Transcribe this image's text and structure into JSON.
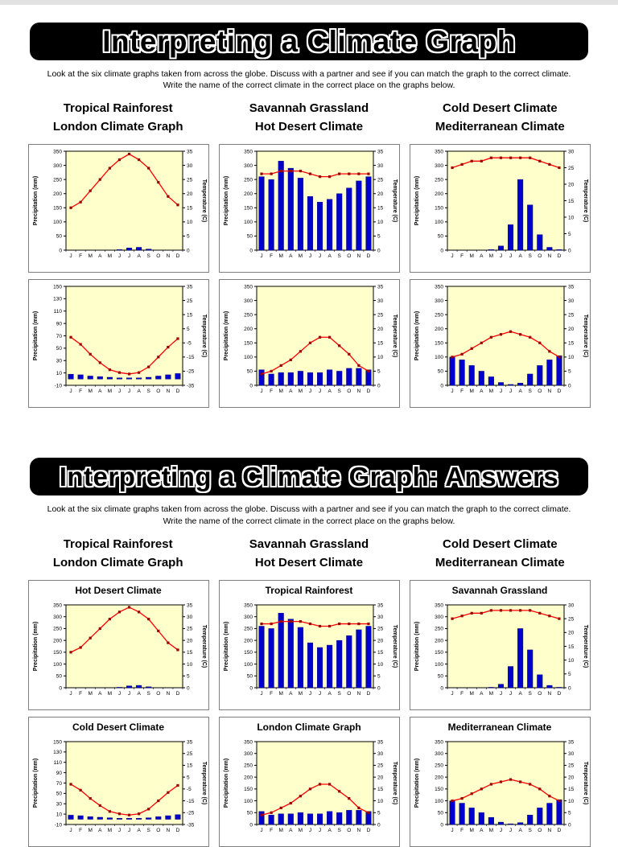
{
  "common": {
    "instructions_line1": "Look at the six climate graphs taken from across the globe.  Discuss with a partner and see if you can match the graph to the correct climate.",
    "instructions_line2": "Write the name of the correct climate in the correct place on the graphs below.",
    "label_columns": [
      {
        "line1": "Tropical Rainforest",
        "line2": "London Climate Graph"
      },
      {
        "line1": "Savannah Grassland",
        "line2": "Hot Desert Climate"
      },
      {
        "line1": "Cold Desert Climate",
        "line2": "Mediterranean Climate"
      }
    ],
    "months": [
      "J",
      "F",
      "M",
      "A",
      "M",
      "J",
      "J",
      "A",
      "S",
      "O",
      "N",
      "D"
    ]
  },
  "sections": [
    {
      "title": "Interpreting a Climate Graph"
    },
    {
      "title": "Interpreting a Climate Graph: Answers"
    }
  ],
  "colors": {
    "bar": "#0000cc",
    "bar_edge": "#000066",
    "line": "#ff0000",
    "marker": "#990000",
    "plot_bg": "#ffffcc",
    "banner_bg": "#000000"
  },
  "chart_data": [
    {
      "type": "bar+line",
      "answer_title": "Hot Desert Climate",
      "left_axis": {
        "label": "Precipitation (mm)",
        "min": 0,
        "max": 350,
        "step": 50
      },
      "right_axis": {
        "label": "Temperature (C)",
        "min": 0,
        "max": 35,
        "step": 5
      },
      "categories": [
        "J",
        "F",
        "M",
        "A",
        "M",
        "J",
        "J",
        "A",
        "S",
        "O",
        "N",
        "D"
      ],
      "precip_mm": [
        0,
        0,
        0,
        0,
        0,
        2,
        8,
        10,
        4,
        0,
        0,
        0
      ],
      "temp_c": [
        15,
        17,
        21,
        25,
        29,
        32,
        34,
        32,
        29,
        24,
        19,
        16
      ]
    },
    {
      "type": "bar+line",
      "answer_title": "Tropical Rainforest",
      "left_axis": {
        "label": "Precipitation (mm)",
        "min": 0,
        "max": 350,
        "step": 50
      },
      "right_axis": {
        "label": "Temperature (C)",
        "min": 0,
        "max": 35,
        "step": 5
      },
      "categories": [
        "J",
        "F",
        "M",
        "A",
        "M",
        "J",
        "J",
        "A",
        "S",
        "O",
        "N",
        "D"
      ],
      "precip_mm": [
        260,
        250,
        315,
        290,
        255,
        190,
        170,
        180,
        200,
        220,
        245,
        260
      ],
      "temp_c": [
        27,
        27,
        28,
        28,
        28,
        27,
        26,
        26,
        27,
        27,
        27,
        27
      ]
    },
    {
      "type": "bar+line",
      "answer_title": "Savannah Grassland",
      "left_axis": {
        "label": "Precipitation (mm)",
        "min": 0,
        "max": 350,
        "step": 50
      },
      "right_axis": {
        "label": "Temperature (C)",
        "min": 0,
        "max": 30,
        "step": 5
      },
      "categories": [
        "J",
        "F",
        "M",
        "A",
        "M",
        "J",
        "J",
        "A",
        "S",
        "O",
        "N",
        "D"
      ],
      "precip_mm": [
        0,
        0,
        0,
        0,
        2,
        15,
        90,
        250,
        160,
        55,
        10,
        2
      ],
      "temp_c": [
        25,
        26,
        27,
        27,
        28,
        28,
        28,
        28,
        28,
        27,
        26,
        25
      ]
    },
    {
      "type": "bar+line",
      "answer_title": "Cold Desert Climate",
      "left_axis": {
        "label": "Precipitation (mm)",
        "min": -10,
        "max": 150,
        "step": 20
      },
      "right_axis": {
        "label": "Temperature (C)",
        "min": -35,
        "max": 35,
        "step": 10
      },
      "categories": [
        "J",
        "F",
        "M",
        "A",
        "M",
        "J",
        "J",
        "A",
        "S",
        "O",
        "N",
        "D"
      ],
      "precip_mm": [
        8,
        7,
        5,
        4,
        3,
        2,
        2,
        2,
        3,
        5,
        7,
        9
      ],
      "temp_c": [
        -1,
        -6,
        -13,
        -19,
        -24,
        -26,
        -27,
        -26,
        -22,
        -15,
        -8,
        -2
      ]
    },
    {
      "type": "bar+line",
      "answer_title": "London Climate Graph",
      "left_axis": {
        "label": "Precipitation (mm)",
        "min": 0,
        "max": 350,
        "step": 50
      },
      "right_axis": {
        "label": "Temperature (C)",
        "min": 0,
        "max": 35,
        "step": 5
      },
      "categories": [
        "J",
        "F",
        "M",
        "A",
        "M",
        "J",
        "J",
        "A",
        "S",
        "O",
        "N",
        "D"
      ],
      "precip_mm": [
        55,
        40,
        45,
        45,
        50,
        45,
        45,
        55,
        50,
        60,
        60,
        55
      ],
      "temp_c": [
        4,
        5,
        7,
        9,
        12,
        15,
        17,
        17,
        14,
        11,
        7,
        5
      ]
    },
    {
      "type": "bar+line",
      "answer_title": "Mediterranean Climate",
      "left_axis": {
        "label": "Precipitation (mm)",
        "min": 0,
        "max": 350,
        "step": 50
      },
      "right_axis": {
        "label": "Temperature (C)",
        "min": 0,
        "max": 35,
        "step": 5
      },
      "categories": [
        "J",
        "F",
        "M",
        "A",
        "M",
        "J",
        "J",
        "A",
        "S",
        "O",
        "N",
        "D"
      ],
      "precip_mm": [
        100,
        90,
        70,
        50,
        30,
        10,
        3,
        8,
        40,
        70,
        90,
        105
      ],
      "temp_c": [
        10,
        11,
        13,
        15,
        17,
        18,
        19,
        18,
        17,
        15,
        12,
        10
      ]
    }
  ]
}
